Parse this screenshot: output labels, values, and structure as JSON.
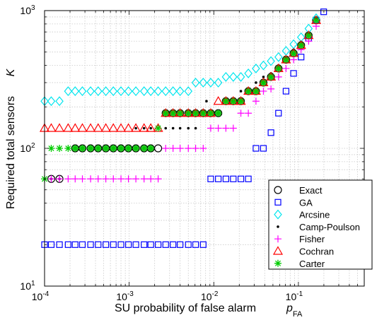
{
  "chart_data": {
    "type": "scatter",
    "xlabel": "SU probability of false alarm",
    "xlabel_symbol": "p",
    "xlabel_subscript": "FA",
    "ylabel": "Required total sensors",
    "ylabel_symbol": "K",
    "xscale": "log",
    "yscale": "log",
    "xlim": [
      0.0001,
      0.6
    ],
    "ylim": [
      10,
      1000
    ],
    "grid": true,
    "legend_position": "bottom-right",
    "x_ticks": [
      {
        "value": 0.0001,
        "base": "10",
        "exp": "-4"
      },
      {
        "value": 0.001,
        "base": "10",
        "exp": "-3"
      },
      {
        "value": 0.01,
        "base": "10",
        "exp": "-2"
      },
      {
        "value": 0.1,
        "base": "10",
        "exp": "-1"
      }
    ],
    "y_ticks": [
      {
        "value": 10,
        "base": "10",
        "exp": "1"
      },
      {
        "value": 100,
        "base": "10",
        "exp": "2"
      },
      {
        "value": 1000,
        "base": "10",
        "exp": "3"
      }
    ],
    "series": [
      {
        "name": "Exact",
        "marker": "circle",
        "color": "#000000",
        "fill": "none",
        "points": [
          [
            0.00012,
            60
          ],
          [
            0.00015,
            60
          ],
          [
            0.00023,
            100
          ],
          [
            0.00028,
            100
          ],
          [
            0.00035,
            100
          ],
          [
            0.00043,
            100
          ],
          [
            0.00053,
            100
          ],
          [
            0.00065,
            100
          ],
          [
            0.0008,
            100
          ],
          [
            0.00098,
            100
          ],
          [
            0.0012,
            100
          ],
          [
            0.0015,
            100
          ],
          [
            0.0018,
            100
          ],
          [
            0.0022,
            100
          ],
          [
            0.0027,
            180
          ],
          [
            0.0033,
            180
          ],
          [
            0.004,
            180
          ],
          [
            0.005,
            180
          ],
          [
            0.0061,
            180
          ],
          [
            0.0075,
            180
          ],
          [
            0.0092,
            180
          ],
          [
            0.0113,
            180
          ],
          [
            0.0139,
            220
          ],
          [
            0.017,
            220
          ],
          [
            0.0209,
            220
          ],
          [
            0.0256,
            260
          ],
          [
            0.0315,
            260
          ],
          [
            0.0386,
            300
          ],
          [
            0.0474,
            330
          ],
          [
            0.0582,
            380
          ],
          [
            0.0714,
            440
          ],
          [
            0.0877,
            490
          ],
          [
            0.1076,
            560
          ],
          [
            0.1321,
            660
          ],
          [
            0.1621,
            850
          ]
        ]
      },
      {
        "name": "GA",
        "marker": "square",
        "color": "#0000ff",
        "fill": "none",
        "points": [
          [
            0.0001,
            20
          ],
          [
            0.00012,
            20
          ],
          [
            0.00015,
            20
          ],
          [
            0.00019,
            20
          ],
          [
            0.00023,
            20
          ],
          [
            0.00028,
            20
          ],
          [
            0.00035,
            20
          ],
          [
            0.00043,
            20
          ],
          [
            0.00053,
            20
          ],
          [
            0.00065,
            20
          ],
          [
            0.0008,
            20
          ],
          [
            0.00098,
            20
          ],
          [
            0.0012,
            20
          ],
          [
            0.0015,
            20
          ],
          [
            0.0018,
            20
          ],
          [
            0.0022,
            20
          ],
          [
            0.0027,
            20
          ],
          [
            0.0033,
            20
          ],
          [
            0.004,
            20
          ],
          [
            0.005,
            20
          ],
          [
            0.0061,
            20
          ],
          [
            0.0075,
            20
          ],
          [
            0.0092,
            60
          ],
          [
            0.0113,
            60
          ],
          [
            0.0139,
            60
          ],
          [
            0.017,
            60
          ],
          [
            0.0209,
            60
          ],
          [
            0.0256,
            60
          ],
          [
            0.0315,
            100
          ],
          [
            0.0386,
            100
          ],
          [
            0.0474,
            130
          ],
          [
            0.0582,
            180
          ],
          [
            0.0714,
            260
          ],
          [
            0.0877,
            350
          ],
          [
            0.1076,
            460
          ],
          [
            0.1321,
            630
          ],
          [
            0.1621,
            850
          ],
          [
            0.199,
            980
          ]
        ]
      },
      {
        "name": "Arcsine",
        "marker": "diamond",
        "color": "#00e5ee",
        "fill": "none",
        "points": [
          [
            0.0001,
            220
          ],
          [
            0.00012,
            220
          ],
          [
            0.00015,
            220
          ],
          [
            0.00019,
            260
          ],
          [
            0.00023,
            260
          ],
          [
            0.00028,
            260
          ],
          [
            0.00035,
            260
          ],
          [
            0.00043,
            260
          ],
          [
            0.00053,
            260
          ],
          [
            0.00065,
            260
          ],
          [
            0.0008,
            260
          ],
          [
            0.00098,
            260
          ],
          [
            0.0012,
            260
          ],
          [
            0.0015,
            260
          ],
          [
            0.0018,
            260
          ],
          [
            0.0022,
            260
          ],
          [
            0.0027,
            260
          ],
          [
            0.0033,
            260
          ],
          [
            0.004,
            260
          ],
          [
            0.005,
            260
          ],
          [
            0.0061,
            300
          ],
          [
            0.0075,
            300
          ],
          [
            0.0092,
            300
          ],
          [
            0.0113,
            300
          ],
          [
            0.0139,
            330
          ],
          [
            0.017,
            330
          ],
          [
            0.0209,
            330
          ],
          [
            0.0256,
            350
          ],
          [
            0.0315,
            380
          ],
          [
            0.0386,
            400
          ],
          [
            0.0474,
            430
          ],
          [
            0.0582,
            460
          ],
          [
            0.0714,
            510
          ],
          [
            0.0877,
            570
          ],
          [
            0.1076,
            640
          ],
          [
            0.1321,
            740
          ],
          [
            0.1621,
            880
          ]
        ]
      },
      {
        "name": "Camp-Poulson",
        "marker": "dot",
        "color": "#000000",
        "fill": "#000000",
        "points": [
          [
            0.00012,
            60
          ],
          [
            0.00015,
            60
          ],
          [
            0.00019,
            100
          ],
          [
            0.00023,
            100
          ],
          [
            0.00028,
            100
          ],
          [
            0.00035,
            100
          ],
          [
            0.00043,
            100
          ],
          [
            0.00053,
            100
          ],
          [
            0.00065,
            100
          ],
          [
            0.0008,
            100
          ],
          [
            0.00098,
            100
          ],
          [
            0.0012,
            100
          ],
          [
            0.0012,
            140
          ],
          [
            0.0015,
            140
          ],
          [
            0.0018,
            140
          ],
          [
            0.0022,
            140
          ],
          [
            0.0027,
            140
          ],
          [
            0.0033,
            140
          ],
          [
            0.004,
            140
          ],
          [
            0.005,
            140
          ],
          [
            0.0061,
            140
          ],
          [
            0.0075,
            180
          ],
          [
            0.0082,
            220
          ],
          [
            0.0092,
            180
          ],
          [
            0.0113,
            180
          ],
          [
            0.0139,
            220
          ],
          [
            0.017,
            220
          ],
          [
            0.0209,
            260
          ],
          [
            0.0256,
            260
          ],
          [
            0.0315,
            300
          ],
          [
            0.0386,
            330
          ],
          [
            0.0474,
            350
          ],
          [
            0.0582,
            400
          ],
          [
            0.0714,
            460
          ],
          [
            0.0877,
            520
          ],
          [
            0.1076,
            590
          ],
          [
            0.1321,
            690
          ],
          [
            0.1621,
            890
          ]
        ]
      },
      {
        "name": "Fisher",
        "marker": "plus",
        "color": "#ff00ff",
        "fill": "none",
        "points": [
          [
            0.00012,
            60
          ],
          [
            0.00015,
            60
          ],
          [
            0.00019,
            60
          ],
          [
            0.00023,
            60
          ],
          [
            0.00028,
            60
          ],
          [
            0.00035,
            60
          ],
          [
            0.00043,
            60
          ],
          [
            0.00053,
            60
          ],
          [
            0.00065,
            60
          ],
          [
            0.0008,
            60
          ],
          [
            0.00098,
            60
          ],
          [
            0.0012,
            60
          ],
          [
            0.0015,
            60
          ],
          [
            0.0018,
            60
          ],
          [
            0.0022,
            60
          ],
          [
            0.0027,
            100
          ],
          [
            0.0033,
            100
          ],
          [
            0.004,
            100
          ],
          [
            0.005,
            100
          ],
          [
            0.0061,
            100
          ],
          [
            0.0075,
            100
          ],
          [
            0.0092,
            140
          ],
          [
            0.0113,
            140
          ],
          [
            0.0139,
            140
          ],
          [
            0.017,
            140
          ],
          [
            0.0209,
            180
          ],
          [
            0.0256,
            180
          ],
          [
            0.0315,
            220
          ],
          [
            0.0386,
            260
          ],
          [
            0.0474,
            270
          ],
          [
            0.0582,
            330
          ],
          [
            0.0714,
            380
          ],
          [
            0.0877,
            440
          ],
          [
            0.1076,
            520
          ],
          [
            0.1321,
            600
          ],
          [
            0.1621,
            770
          ]
        ]
      },
      {
        "name": "Cochran",
        "marker": "triangle",
        "color": "#ff0000",
        "fill": "none",
        "points": [
          [
            0.0001,
            140
          ],
          [
            0.00012,
            140
          ],
          [
            0.00015,
            140
          ],
          [
            0.00019,
            140
          ],
          [
            0.00023,
            140
          ],
          [
            0.00028,
            140
          ],
          [
            0.00035,
            140
          ],
          [
            0.00043,
            140
          ],
          [
            0.00053,
            140
          ],
          [
            0.00065,
            140
          ],
          [
            0.0008,
            140
          ],
          [
            0.00098,
            140
          ],
          [
            0.0012,
            140
          ],
          [
            0.0015,
            140
          ],
          [
            0.0018,
            140
          ],
          [
            0.0022,
            140
          ],
          [
            0.0027,
            180
          ],
          [
            0.0033,
            180
          ],
          [
            0.004,
            180
          ],
          [
            0.005,
            180
          ],
          [
            0.0061,
            180
          ],
          [
            0.0075,
            180
          ],
          [
            0.0092,
            180
          ],
          [
            0.0113,
            220
          ],
          [
            0.0139,
            220
          ],
          [
            0.017,
            220
          ],
          [
            0.0209,
            220
          ],
          [
            0.0256,
            260
          ],
          [
            0.0315,
            260
          ],
          [
            0.0386,
            300
          ],
          [
            0.0474,
            330
          ],
          [
            0.0582,
            380
          ],
          [
            0.0714,
            440
          ],
          [
            0.0877,
            490
          ],
          [
            0.1076,
            560
          ],
          [
            0.1321,
            660
          ],
          [
            0.1621,
            850
          ]
        ]
      },
      {
        "name": "Carter",
        "marker": "asterisk",
        "color": "#00cc00",
        "fill": "none",
        "points": [
          [
            0.0001,
            60
          ],
          [
            0.00012,
            100
          ],
          [
            0.00015,
            100
          ],
          [
            0.00019,
            100
          ],
          [
            0.00023,
            100
          ],
          [
            0.00028,
            100
          ],
          [
            0.00035,
            100
          ],
          [
            0.00043,
            100
          ],
          [
            0.00053,
            100
          ],
          [
            0.00065,
            100
          ],
          [
            0.0008,
            100
          ],
          [
            0.00098,
            100
          ],
          [
            0.0012,
            100
          ],
          [
            0.0015,
            100
          ],
          [
            0.0018,
            100
          ],
          [
            0.0022,
            140
          ],
          [
            0.0027,
            180
          ],
          [
            0.0033,
            180
          ],
          [
            0.004,
            180
          ],
          [
            0.005,
            180
          ],
          [
            0.0061,
            180
          ],
          [
            0.0075,
            180
          ],
          [
            0.0092,
            180
          ],
          [
            0.0113,
            180
          ],
          [
            0.0139,
            220
          ],
          [
            0.017,
            220
          ],
          [
            0.0209,
            220
          ],
          [
            0.0256,
            260
          ],
          [
            0.0315,
            260
          ],
          [
            0.0386,
            300
          ],
          [
            0.0474,
            330
          ],
          [
            0.0582,
            380
          ],
          [
            0.0714,
            440
          ],
          [
            0.0877,
            490
          ],
          [
            0.1076,
            560
          ],
          [
            0.1321,
            660
          ],
          [
            0.1621,
            850
          ]
        ]
      }
    ]
  },
  "overlay_colors": {
    "green_fill": "#44bb44",
    "green_fill_edge": "#336633"
  }
}
